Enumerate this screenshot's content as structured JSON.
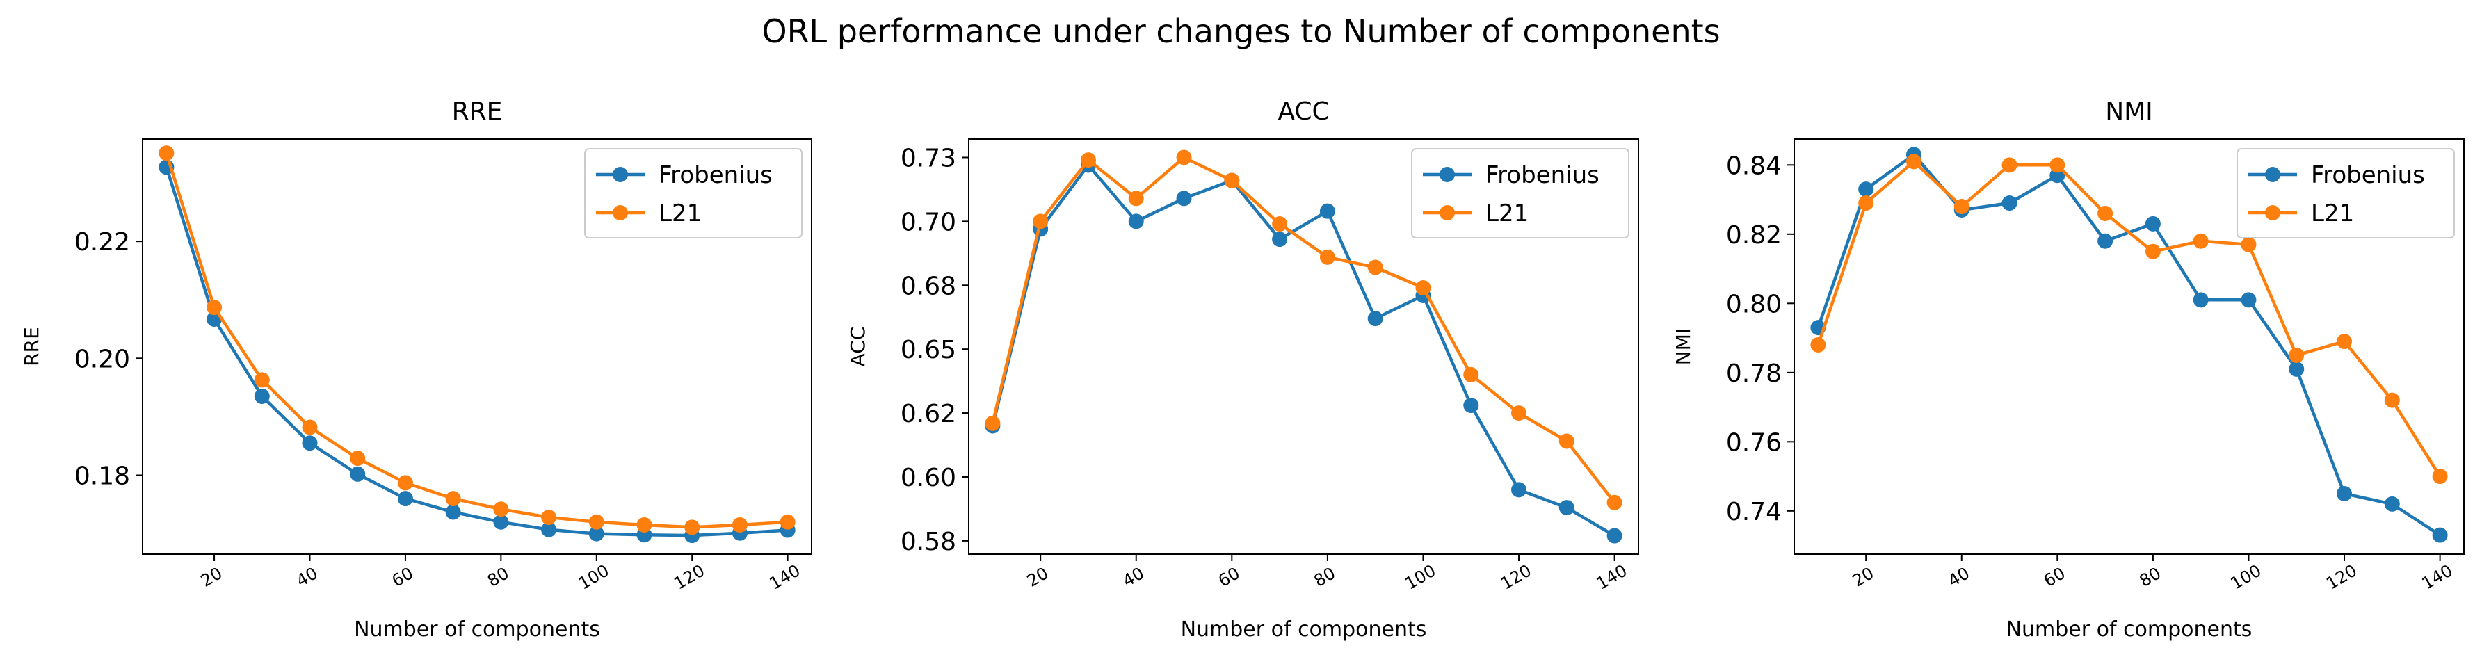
{
  "suptitle": "ORL performance under changes to Number of components",
  "colors": {
    "Frobenius": "#1f77b4",
    "L21": "#ff7f0e"
  },
  "chart_data": [
    {
      "type": "line",
      "title": "RRE",
      "xlabel": "Number of components",
      "ylabel": "RRE",
      "x": [
        10,
        20,
        30,
        40,
        50,
        60,
        70,
        80,
        90,
        100,
        110,
        120,
        130,
        140
      ],
      "xticks": [
        20,
        40,
        60,
        80,
        100,
        120,
        140
      ],
      "yticks": [
        0.18,
        0.2,
        0.22
      ],
      "ytick_labels": [
        "0.18",
        "0.20",
        "0.22"
      ],
      "xlim": [
        5,
        145
      ],
      "ylim": [
        0.1665,
        0.2375
      ],
      "grid": false,
      "legend_position": "top-right",
      "series": [
        {
          "name": "Frobenius",
          "values": [
            0.2327,
            0.2067,
            0.1935,
            0.1855,
            0.1802,
            0.176,
            0.1737,
            0.172,
            0.1707,
            0.17,
            0.1698,
            0.1697,
            0.1701,
            0.1706
          ]
        },
        {
          "name": "L21",
          "values": [
            0.2351,
            0.2087,
            0.1963,
            0.1882,
            0.1829,
            0.1787,
            0.176,
            0.1742,
            0.1728,
            0.172,
            0.1715,
            0.1711,
            0.1715,
            0.172
          ]
        }
      ]
    },
    {
      "type": "line",
      "title": "ACC",
      "xlabel": "Number of components",
      "ylabel": "ACC",
      "x": [
        10,
        20,
        30,
        40,
        50,
        60,
        70,
        80,
        90,
        100,
        110,
        120,
        130,
        140
      ],
      "xticks": [
        20,
        40,
        60,
        80,
        100,
        120,
        140
      ],
      "yticks": [
        0.575,
        0.6,
        0.625,
        0.65,
        0.675,
        0.7,
        0.725
      ],
      "ytick_labels": [
        "0.58",
        "0.60",
        "0.62",
        "0.65",
        "0.68",
        "0.70",
        "0.73"
      ],
      "xlim": [
        5,
        145
      ],
      "ylim": [
        0.5698,
        0.7322
      ],
      "grid": false,
      "legend_position": "top-right",
      "series": [
        {
          "name": "Frobenius",
          "values": [
            0.62,
            0.697,
            0.722,
            0.7,
            0.709,
            0.716,
            0.693,
            0.704,
            0.662,
            0.671,
            0.628,
            0.595,
            0.588,
            0.577
          ]
        },
        {
          "name": "L21",
          "values": [
            0.621,
            0.7,
            0.724,
            0.709,
            0.725,
            0.716,
            0.699,
            0.686,
            0.682,
            0.674,
            0.64,
            0.625,
            0.614,
            0.59
          ]
        }
      ]
    },
    {
      "type": "line",
      "title": "NMI",
      "xlabel": "Number of components",
      "ylabel": "NMI",
      "x": [
        10,
        20,
        30,
        40,
        50,
        60,
        70,
        80,
        90,
        100,
        110,
        120,
        130,
        140
      ],
      "xticks": [
        20,
        40,
        60,
        80,
        100,
        120,
        140
      ],
      "yticks": [
        0.74,
        0.76,
        0.78,
        0.8,
        0.82,
        0.84
      ],
      "ytick_labels": [
        "0.74",
        "0.76",
        "0.78",
        "0.80",
        "0.82",
        "0.84"
      ],
      "xlim": [
        5,
        145
      ],
      "ylim": [
        0.7275,
        0.8475
      ],
      "grid": false,
      "legend_position": "top-right",
      "series": [
        {
          "name": "Frobenius",
          "values": [
            0.793,
            0.833,
            0.843,
            0.827,
            0.829,
            0.837,
            0.818,
            0.823,
            0.801,
            0.801,
            0.781,
            0.745,
            0.742,
            0.733
          ]
        },
        {
          "name": "L21",
          "values": [
            0.788,
            0.829,
            0.841,
            0.828,
            0.84,
            0.84,
            0.826,
            0.815,
            0.818,
            0.817,
            0.785,
            0.789,
            0.772,
            0.75
          ]
        }
      ]
    }
  ]
}
